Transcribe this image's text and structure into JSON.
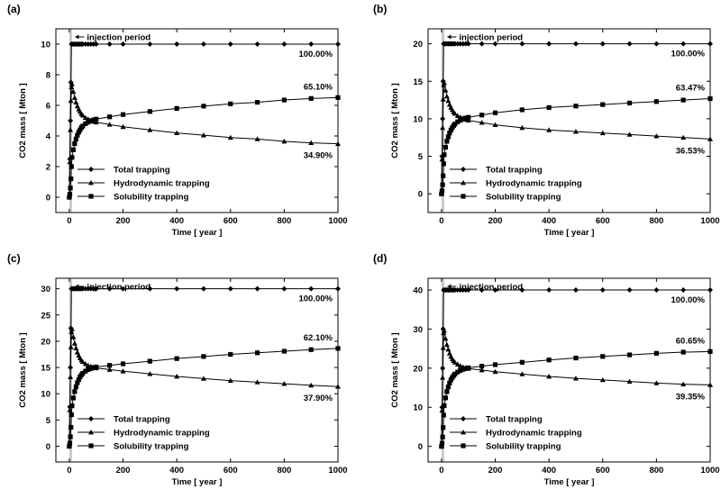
{
  "chart_data": [
    {
      "panel": "(a)",
      "type": "line",
      "xlabel": "Time [ year ]",
      "ylabel": "CO2 mass [ Mton ]",
      "xlim": [
        -50,
        1000
      ],
      "ylim": [
        -1,
        11
      ],
      "xticks": [
        0,
        200,
        400,
        600,
        800,
        1000
      ],
      "yticks": [
        0,
        2,
        4,
        6,
        8,
        10
      ],
      "injection_period_label": "injection period",
      "legend_position": "bottom-left",
      "legend": [
        "Total trapping",
        "Hydrodynamic trapping",
        "Solubility trapping"
      ],
      "end_labels": {
        "total": "100.00%",
        "solubility": "65.10%",
        "hydrodynamic": "34.90%"
      },
      "series": [
        {
          "name": "Total trapping",
          "marker": "diamond",
          "x": [
            0,
            2,
            4,
            6,
            8,
            10,
            15,
            20,
            25,
            30,
            35,
            40,
            45,
            50,
            60,
            70,
            80,
            90,
            100,
            150,
            200,
            300,
            400,
            500,
            600,
            700,
            800,
            900,
            1000
          ],
          "y": [
            0,
            2.5,
            5,
            7.5,
            10,
            10,
            10,
            10,
            10,
            10,
            10,
            10,
            10,
            10,
            10,
            10,
            10,
            10,
            10,
            10,
            10,
            10,
            10,
            10,
            10,
            10,
            10,
            10,
            10
          ]
        },
        {
          "name": "Hydrodynamic trapping",
          "marker": "triangle",
          "x": [
            0,
            2,
            4,
            6,
            8,
            10,
            15,
            20,
            25,
            30,
            35,
            40,
            45,
            50,
            60,
            70,
            80,
            90,
            100,
            150,
            200,
            300,
            400,
            500,
            600,
            700,
            800,
            900,
            1000
          ],
          "y": [
            0,
            2.3,
            4.4,
            6.3,
            7.2,
            7.4,
            6.9,
            6.5,
            6.2,
            5.95,
            5.75,
            5.6,
            5.45,
            5.35,
            5.2,
            5.1,
            5.0,
            4.95,
            4.9,
            4.75,
            4.6,
            4.4,
            4.2,
            4.05,
            3.9,
            3.8,
            3.65,
            3.55,
            3.49
          ]
        },
        {
          "name": "Solubility trapping",
          "marker": "square",
          "x": [
            0,
            2,
            4,
            6,
            8,
            10,
            15,
            20,
            25,
            30,
            35,
            40,
            45,
            50,
            60,
            70,
            80,
            90,
            100,
            150,
            200,
            300,
            400,
            500,
            600,
            700,
            800,
            900,
            1000
          ],
          "y": [
            0,
            0.2,
            0.6,
            1.2,
            2.0,
            2.6,
            3.1,
            3.5,
            3.8,
            4.05,
            4.25,
            4.4,
            4.55,
            4.65,
            4.8,
            4.9,
            5.0,
            5.05,
            5.1,
            5.25,
            5.4,
            5.6,
            5.8,
            5.95,
            6.1,
            6.2,
            6.35,
            6.45,
            6.51
          ]
        }
      ]
    },
    {
      "panel": "(b)",
      "type": "line",
      "xlabel": "Time [ year ]",
      "ylabel": "CO2 mass [ Mton ]",
      "xlim": [
        -50,
        1000
      ],
      "ylim": [
        -2.5,
        22
      ],
      "xticks": [
        0,
        200,
        400,
        600,
        800,
        1000
      ],
      "yticks": [
        0,
        5,
        10,
        15,
        20
      ],
      "injection_period_label": "injection period",
      "legend_position": "bottom-left",
      "legend": [
        "Total trapping",
        "Hydrodynamic trapping",
        "Solubility trapping"
      ],
      "end_labels": {
        "total": "100.00%",
        "solubility": "63.47%",
        "hydrodynamic": "36.53%"
      },
      "series": [
        {
          "name": "Total trapping",
          "marker": "diamond",
          "x": [
            0,
            2,
            4,
            6,
            8,
            10,
            15,
            20,
            25,
            30,
            35,
            40,
            45,
            50,
            60,
            70,
            80,
            90,
            100,
            150,
            200,
            300,
            400,
            500,
            600,
            700,
            800,
            900,
            1000
          ],
          "y": [
            0,
            5,
            10,
            15,
            20,
            20,
            20,
            20,
            20,
            20,
            20,
            20,
            20,
            20,
            20,
            20,
            20,
            20,
            20,
            20,
            20,
            20,
            20,
            20,
            20,
            20,
            20,
            20,
            20
          ]
        },
        {
          "name": "Hydrodynamic trapping",
          "marker": "triangle",
          "x": [
            0,
            2,
            4,
            6,
            8,
            10,
            15,
            20,
            25,
            30,
            35,
            40,
            45,
            50,
            60,
            70,
            80,
            90,
            100,
            150,
            200,
            300,
            400,
            500,
            600,
            700,
            800,
            900,
            1000
          ],
          "y": [
            0,
            4.6,
            8.8,
            12.6,
            14.5,
            14.8,
            13.8,
            13.0,
            12.4,
            11.9,
            11.5,
            11.2,
            10.9,
            10.7,
            10.4,
            10.2,
            10.0,
            9.9,
            9.8,
            9.5,
            9.2,
            8.8,
            8.5,
            8.3,
            8.1,
            7.9,
            7.7,
            7.5,
            7.31
          ]
        },
        {
          "name": "Solubility trapping",
          "marker": "square",
          "x": [
            0,
            2,
            4,
            6,
            8,
            10,
            15,
            20,
            25,
            30,
            35,
            40,
            45,
            50,
            60,
            70,
            80,
            90,
            100,
            150,
            200,
            300,
            400,
            500,
            600,
            700,
            800,
            900,
            1000
          ],
          "y": [
            0,
            0.4,
            1.2,
            2.4,
            4.0,
            5.2,
            6.2,
            7.0,
            7.6,
            8.1,
            8.5,
            8.8,
            9.1,
            9.3,
            9.6,
            9.8,
            10.0,
            10.1,
            10.2,
            10.5,
            10.8,
            11.2,
            11.5,
            11.7,
            11.9,
            12.1,
            12.3,
            12.5,
            12.69
          ]
        }
      ]
    },
    {
      "panel": "(c)",
      "type": "line",
      "xlabel": "Time [ year ]",
      "ylabel": "CO2 mass [ Mton ]",
      "xlim": [
        -50,
        1000
      ],
      "ylim": [
        -3,
        32
      ],
      "xticks": [
        0,
        200,
        400,
        600,
        800,
        1000
      ],
      "yticks": [
        0,
        5,
        10,
        15,
        20,
        25,
        30
      ],
      "injection_period_label": "injection period",
      "legend_position": "bottom-left",
      "legend": [
        "Total trapping",
        "Hydrodynamic trapping",
        "Solubility trapping"
      ],
      "end_labels": {
        "total": "100.00%",
        "solubility": "62.10%",
        "hydrodynamic": "37.90%"
      },
      "series": [
        {
          "name": "Total trapping",
          "marker": "diamond",
          "x": [
            0,
            2,
            4,
            6,
            8,
            10,
            15,
            20,
            25,
            30,
            35,
            40,
            45,
            50,
            60,
            70,
            80,
            90,
            100,
            150,
            200,
            300,
            400,
            500,
            600,
            700,
            800,
            900,
            1000
          ],
          "y": [
            0,
            7.5,
            15,
            22.5,
            30,
            30,
            30,
            30,
            30,
            30,
            30,
            30,
            30,
            30,
            30,
            30,
            30,
            30,
            30,
            30,
            30,
            30,
            30,
            30,
            30,
            30,
            30,
            30,
            30
          ]
        },
        {
          "name": "Hydrodynamic trapping",
          "marker": "triangle",
          "x": [
            0,
            2,
            4,
            6,
            8,
            10,
            15,
            20,
            25,
            30,
            35,
            40,
            45,
            50,
            60,
            70,
            80,
            90,
            100,
            150,
            200,
            300,
            400,
            500,
            600,
            700,
            800,
            900,
            1000
          ],
          "y": [
            0,
            6.9,
            13.2,
            18.9,
            21.8,
            22.3,
            20.8,
            19.6,
            18.7,
            17.9,
            17.3,
            16.8,
            16.4,
            16.1,
            15.7,
            15.4,
            15.2,
            15.0,
            14.9,
            14.6,
            14.3,
            13.8,
            13.3,
            12.9,
            12.5,
            12.2,
            11.9,
            11.6,
            11.37
          ]
        },
        {
          "name": "Solubility trapping",
          "marker": "square",
          "x": [
            0,
            2,
            4,
            6,
            8,
            10,
            15,
            20,
            25,
            30,
            35,
            40,
            45,
            50,
            60,
            70,
            80,
            90,
            100,
            150,
            200,
            300,
            400,
            500,
            600,
            700,
            800,
            900,
            1000
          ],
          "y": [
            0,
            0.6,
            1.8,
            3.6,
            6.0,
            7.7,
            9.2,
            10.4,
            11.3,
            12.1,
            12.7,
            13.2,
            13.6,
            13.9,
            14.3,
            14.6,
            14.8,
            15.0,
            15.1,
            15.4,
            15.7,
            16.2,
            16.7,
            17.1,
            17.5,
            17.8,
            18.1,
            18.4,
            18.63
          ]
        }
      ]
    },
    {
      "panel": "(d)",
      "type": "line",
      "xlabel": "Time [ year ]",
      "ylabel": "CO2 mass [ Mton ]",
      "xlim": [
        -50,
        1000
      ],
      "ylim": [
        -4,
        43
      ],
      "xticks": [
        0,
        200,
        400,
        600,
        800,
        1000
      ],
      "yticks": [
        0,
        10,
        20,
        30,
        40
      ],
      "injection_period_label": "injection period",
      "legend_position": "bottom-left",
      "legend": [
        "Total trapping",
        "Hydrodynamic trapping",
        "Solubility trapping"
      ],
      "end_labels": {
        "total": "100.00%",
        "solubility": "60.65%",
        "hydrodynamic": "39.35%"
      },
      "series": [
        {
          "name": "Total trapping",
          "marker": "diamond",
          "x": [
            0,
            2,
            4,
            6,
            8,
            10,
            15,
            20,
            25,
            30,
            35,
            40,
            45,
            50,
            60,
            70,
            80,
            90,
            100,
            150,
            200,
            300,
            400,
            500,
            600,
            700,
            800,
            900,
            1000
          ],
          "y": [
            0,
            10,
            20,
            30,
            40,
            40,
            40,
            40,
            40,
            40,
            40,
            40,
            40,
            40,
            40,
            40,
            40,
            40,
            40,
            40,
            40,
            40,
            40,
            40,
            40,
            40,
            40,
            40,
            40
          ]
        },
        {
          "name": "Hydrodynamic trapping",
          "marker": "triangle",
          "x": [
            0,
            2,
            4,
            6,
            8,
            10,
            15,
            20,
            25,
            30,
            35,
            40,
            45,
            50,
            60,
            70,
            80,
            90,
            100,
            150,
            200,
            300,
            400,
            500,
            600,
            700,
            800,
            900,
            1000
          ],
          "y": [
            0,
            9.2,
            17.6,
            25.2,
            29.0,
            29.6,
            27.6,
            26.0,
            24.8,
            23.8,
            23.0,
            22.4,
            21.9,
            21.5,
            21.0,
            20.6,
            20.3,
            20.1,
            19.9,
            19.5,
            19.1,
            18.5,
            17.9,
            17.4,
            17.0,
            16.6,
            16.2,
            15.9,
            15.74
          ]
        },
        {
          "name": "Solubility trapping",
          "marker": "square",
          "x": [
            0,
            2,
            4,
            6,
            8,
            10,
            15,
            20,
            25,
            30,
            35,
            40,
            45,
            50,
            60,
            70,
            80,
            90,
            100,
            150,
            200,
            300,
            400,
            500,
            600,
            700,
            800,
            900,
            1000
          ],
          "y": [
            0,
            0.8,
            2.4,
            4.8,
            8.0,
            10.4,
            12.4,
            14.0,
            15.2,
            16.2,
            17.0,
            17.6,
            18.1,
            18.5,
            19.0,
            19.4,
            19.7,
            19.9,
            20.1,
            20.5,
            20.9,
            21.5,
            22.1,
            22.6,
            23.0,
            23.4,
            23.8,
            24.1,
            24.26
          ]
        }
      ]
    }
  ]
}
